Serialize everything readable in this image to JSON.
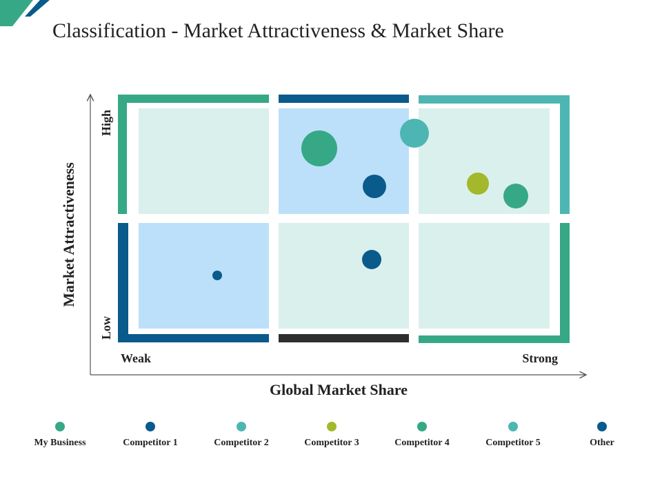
{
  "title": "Classification - Market Attractiveness & Market Share",
  "colors": {
    "teal": "#36A886",
    "navy": "#0A5A8C",
    "light_teal": "#4DB6B3",
    "lime": "#A3B82A",
    "dark": "#2E2E2E",
    "fill_green": "#DAF0EC",
    "fill_blue": "#BCE0F9",
    "axis": "#555555"
  },
  "y_axis": {
    "label": "Market Attractiveness",
    "high_label": "High",
    "low_label": "Low"
  },
  "x_axis": {
    "label": "Global Market Share",
    "weak_label": "Weak",
    "strong_label": "Strong"
  },
  "quadrants": [
    {
      "name": "top-left",
      "fill": "fill_green",
      "border": "teal"
    },
    {
      "name": "top-middle",
      "fill": "fill_blue",
      "border": "navy"
    },
    {
      "name": "top-right",
      "fill": "fill_green",
      "border": "light_teal"
    },
    {
      "name": "bottom-left",
      "fill": "fill_blue",
      "border": "navy"
    },
    {
      "name": "bottom-middle",
      "fill": "fill_green",
      "border": "dark"
    },
    {
      "name": "bottom-right",
      "fill": "fill_green",
      "border": "teal"
    }
  ],
  "bubbles": [
    {
      "color": "teal",
      "size": "large"
    },
    {
      "color": "light_teal",
      "size": "medium"
    },
    {
      "color": "navy",
      "size": "small"
    },
    {
      "color": "lime",
      "size": "small"
    },
    {
      "color": "teal",
      "size": "small"
    },
    {
      "color": "navy",
      "size": "small"
    },
    {
      "color": "navy",
      "size": "tiny"
    }
  ],
  "legend": [
    {
      "label": "My Business",
      "color": "teal"
    },
    {
      "label": "Competitor 1",
      "color": "navy"
    },
    {
      "label": "Competitor 2",
      "color": "light_teal"
    },
    {
      "label": "Competitor 3",
      "color": "lime"
    },
    {
      "label": "Competitor 4",
      "color": "teal"
    },
    {
      "label": "Competitor 5",
      "color": "light_teal"
    },
    {
      "label": "Other",
      "color": "navy"
    }
  ]
}
